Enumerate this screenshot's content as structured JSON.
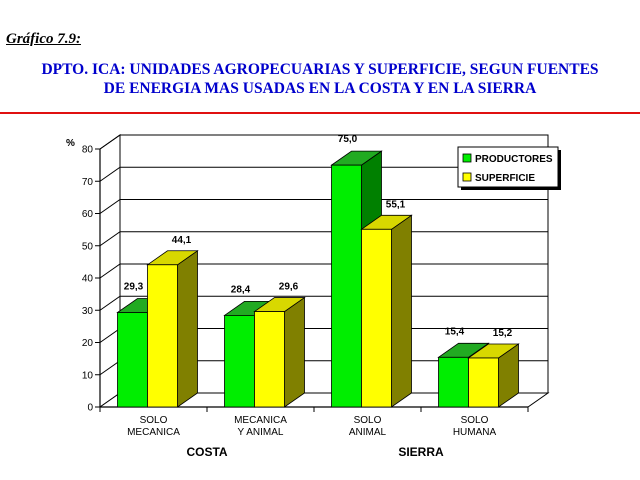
{
  "header": {
    "figure_label": "Gráfico 7.9:",
    "title_line1": "DPTO. ICA: UNIDADES AGROPECUARIAS Y SUPERFICIE, SEGUN FUENTES",
    "title_line2": "DE ENERGIA MAS USADAS EN LA COSTA Y EN LA SIERRA"
  },
  "chart_data": {
    "type": "bar",
    "ylabel": "%",
    "ylim": [
      0,
      80
    ],
    "yticks": [
      0,
      10,
      20,
      30,
      40,
      50,
      60,
      70,
      80
    ],
    "categories": [
      [
        "SOLO",
        "MECANICA"
      ],
      [
        "MECANICA",
        "Y ANIMAL"
      ],
      [
        "SOLO",
        "ANIMAL"
      ],
      [
        "SOLO",
        "HUMANA"
      ]
    ],
    "groups": [
      {
        "label": "COSTA",
        "categories": [
          0,
          1
        ]
      },
      {
        "label": "SIERRA",
        "categories": [
          2,
          3
        ]
      }
    ],
    "series": [
      {
        "name": "PRODUCTORES",
        "color": "#00ee00",
        "side_color": "#008000",
        "top_color": "#22aa22",
        "values": [
          29.3,
          28.4,
          75.0,
          15.4
        ],
        "labels": [
          "29,3",
          "28,4",
          "75,0",
          "15,4"
        ]
      },
      {
        "name": "SUPERFICIE",
        "color": "#ffff00",
        "side_color": "#808000",
        "top_color": "#d8d800",
        "values": [
          44.1,
          29.6,
          55.1,
          15.2
        ],
        "labels": [
          "44,1",
          "29,6",
          "55,1",
          "15,2"
        ]
      }
    ],
    "legend_position": "top-right",
    "grid": true
  }
}
